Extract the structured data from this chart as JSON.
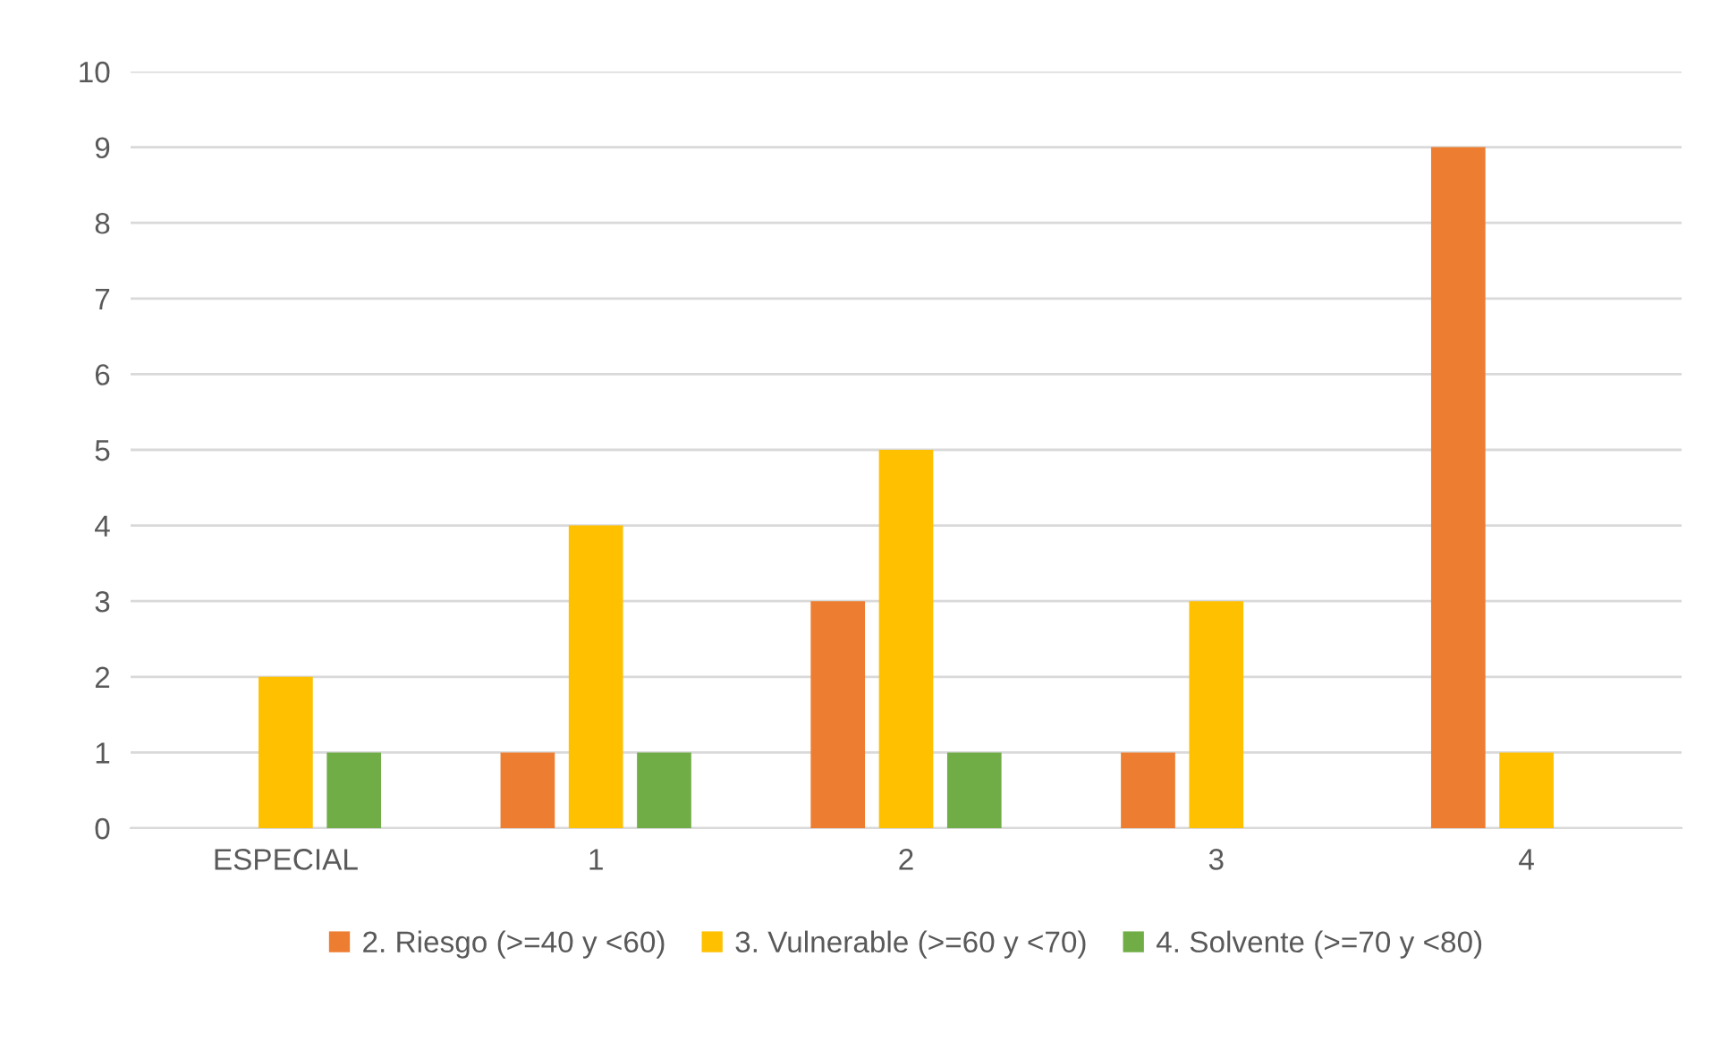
{
  "chart_data": {
    "type": "bar",
    "categories": [
      "ESPECIAL",
      "1",
      "2",
      "3",
      "4"
    ],
    "series": [
      {
        "name": "2. Riesgo (>=40 y <60)",
        "color": "#ed7d31",
        "values": [
          null,
          1,
          3,
          1,
          9
        ]
      },
      {
        "name": "3. Vulnerable (>=60 y <70)",
        "color": "#ffc000",
        "values": [
          2,
          4,
          5,
          3,
          1
        ]
      },
      {
        "name": "4. Solvente (>=70 y <80)",
        "color": "#70ad47",
        "values": [
          1,
          1,
          1,
          null,
          null
        ]
      }
    ],
    "ylim": [
      0,
      10
    ],
    "yticks": [
      0,
      1,
      2,
      3,
      4,
      5,
      6,
      7,
      8,
      9,
      10
    ],
    "grid": "y",
    "legend": "bottom"
  }
}
